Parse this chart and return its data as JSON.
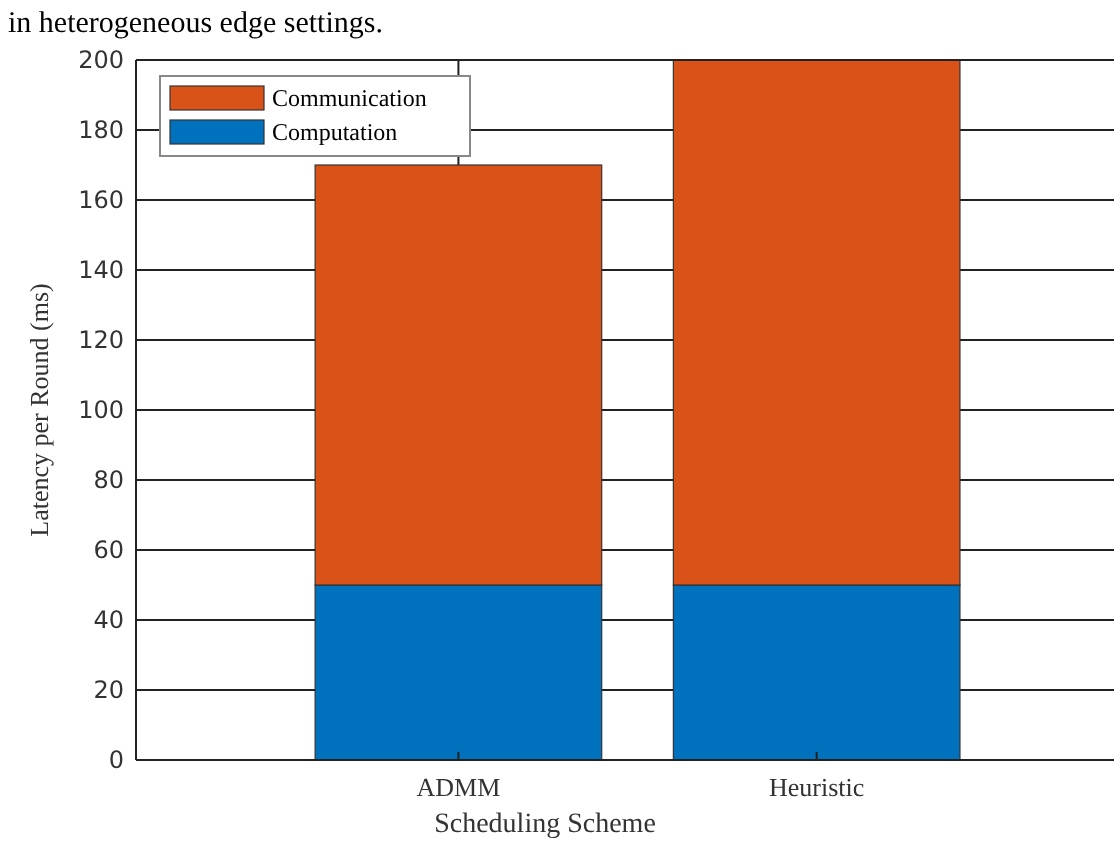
{
  "chart_data": {
    "type": "bar",
    "stacked": true,
    "xlabel": "Scheduling Scheme",
    "ylabel": "Latency per Round (ms)",
    "annotations": [
      "in heterogeneous edge settings."
    ],
    "categories": [
      "ADMM",
      "Heuristic"
    ],
    "series": [
      {
        "name": "Computation",
        "color": "#0072bd",
        "values": [
          50,
          50
        ]
      },
      {
        "name": "Communication",
        "color": "#d95319",
        "values": [
          120,
          150
        ]
      }
    ],
    "ylim": [
      0,
      200
    ],
    "yticks": [
      0,
      20,
      40,
      60,
      80,
      100,
      120,
      140,
      160,
      180,
      200
    ],
    "grid": true,
    "legend": "top left"
  }
}
